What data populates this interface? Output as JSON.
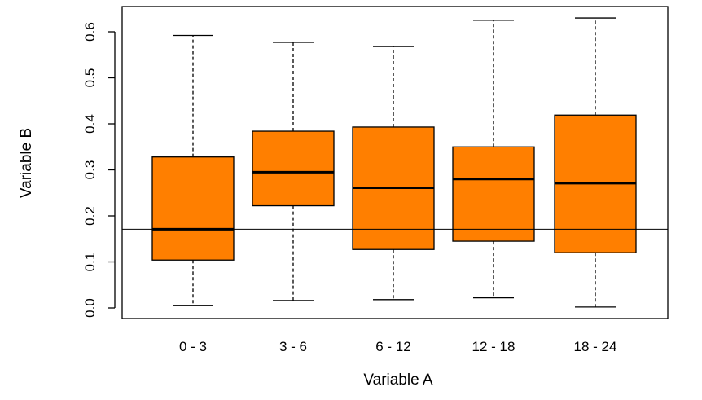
{
  "chart_data": {
    "type": "box",
    "title": "",
    "xlabel": "Variable A",
    "ylabel": "Variable B",
    "categories": [
      "0 - 3",
      "3 - 6",
      "6 - 12",
      "12 - 18",
      "18 - 24"
    ],
    "boxes": [
      {
        "category": "0 - 3",
        "whisker_low": 0.005,
        "q1": 0.104,
        "median": 0.171,
        "q3": 0.328,
        "whisker_high": 0.592
      },
      {
        "category": "3 - 6",
        "whisker_low": 0.016,
        "q1": 0.222,
        "median": 0.295,
        "q3": 0.384,
        "whisker_high": 0.577
      },
      {
        "category": "6 - 12",
        "whisker_low": 0.018,
        "q1": 0.127,
        "median": 0.261,
        "q3": 0.393,
        "whisker_high": 0.568
      },
      {
        "category": "12 - 18",
        "whisker_low": 0.022,
        "q1": 0.145,
        "median": 0.28,
        "q3": 0.35,
        "whisker_high": 0.625
      },
      {
        "category": "18 - 24",
        "whisker_low": 0.002,
        "q1": 0.12,
        "median": 0.271,
        "q3": 0.419,
        "whisker_high": 0.63
      }
    ],
    "reference_line": 0.171,
    "yticks": [
      0.0,
      0.1,
      0.2,
      0.3,
      0.4,
      0.5,
      0.6
    ],
    "ylim": [
      -0.016,
      0.655
    ],
    "grid": false,
    "box_color": "#ff7f00",
    "line_color": "#000000"
  }
}
